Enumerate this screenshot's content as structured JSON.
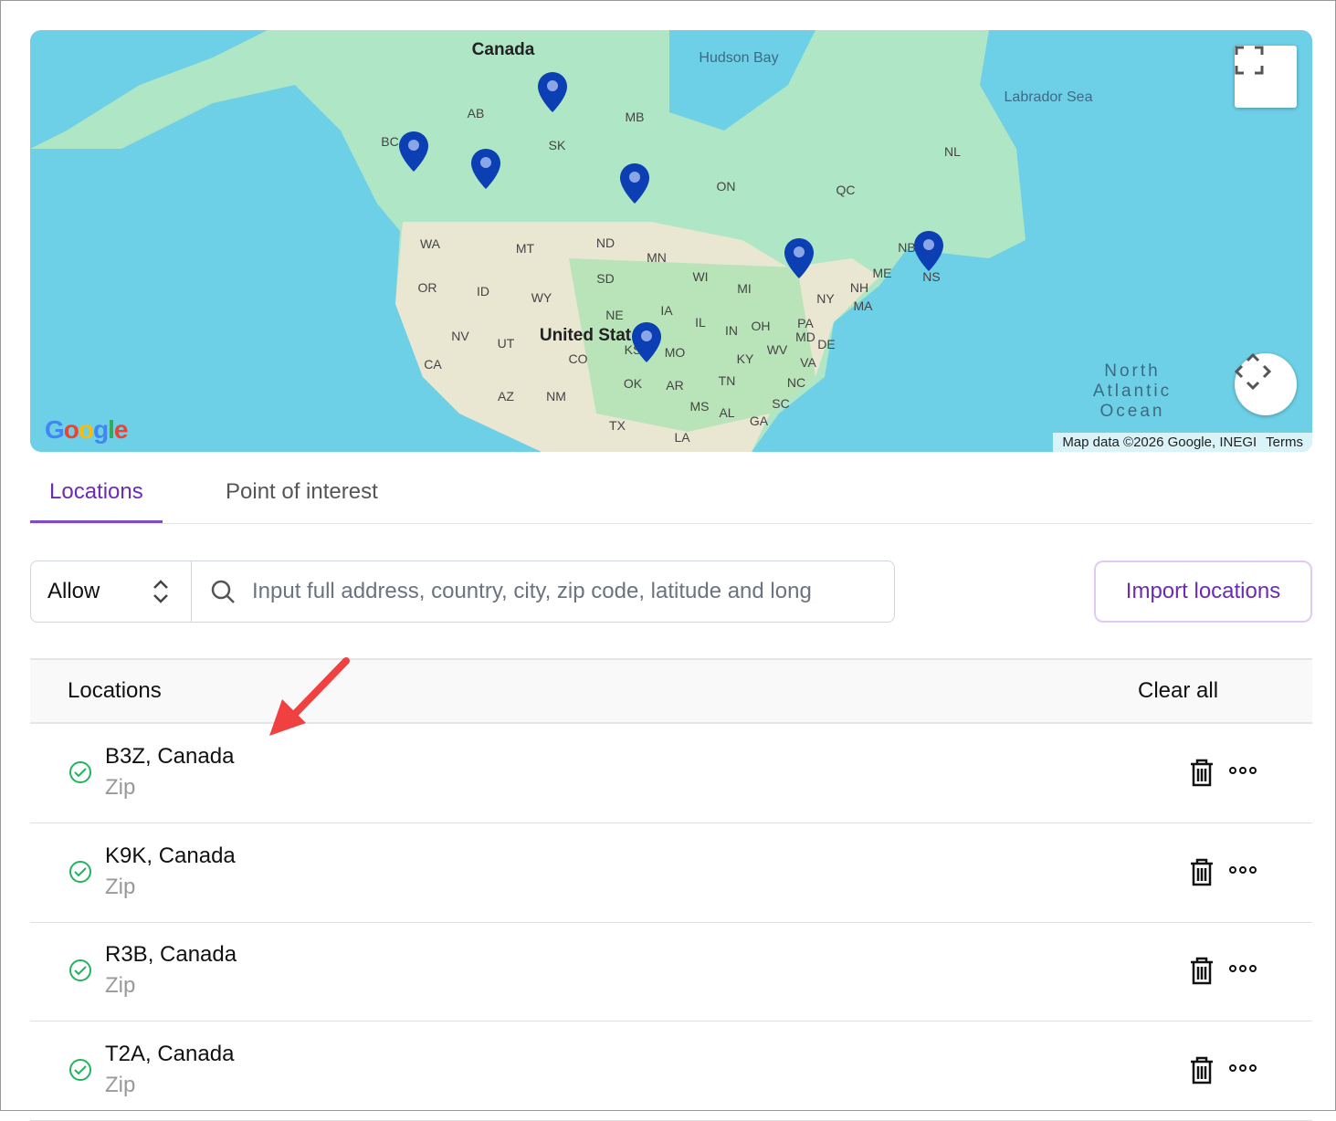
{
  "map": {
    "labels": {
      "country_canada": "Canada",
      "country_us": "United Stat",
      "hudson": "Hudson Bay",
      "labrador": "Labrador Sea",
      "ocean": "North\nAtlantic\nOcean",
      "regions": [
        "AB",
        "BC",
        "SK",
        "MB",
        "ON",
        "QC",
        "NL",
        "NB",
        "NS",
        "WA",
        "OR",
        "CA",
        "NV",
        "ID",
        "MT",
        "WY",
        "UT",
        "AZ",
        "NM",
        "ND",
        "SD",
        "NE",
        "CO",
        "KS",
        "OK",
        "TX",
        "MN",
        "IA",
        "MO",
        "AR",
        "LA",
        "WI",
        "IL",
        "MI",
        "IN",
        "OH",
        "KY",
        "TN",
        "MS",
        "AL",
        "GA",
        "SC",
        "NC",
        "VA",
        "WV",
        "PA",
        "NY",
        "MD",
        "DE",
        "NH",
        "MA",
        "ME"
      ]
    },
    "attribution": "Map data ©2026 Google, INEGI",
    "terms": "Terms",
    "logo": "Google",
    "marker_count": 7,
    "colors": {
      "marker": "#0b3fb3",
      "ocean": "#6dd0e6",
      "land": "#aee6c6"
    }
  },
  "tabs": [
    {
      "label": "Locations",
      "active": true
    },
    {
      "label": "Point of interest",
      "active": false
    }
  ],
  "filter": {
    "mode": "Allow",
    "search_placeholder": "Input full address, country, city, zip code, latitude and long"
  },
  "import_label": "Import locations",
  "table": {
    "header": "Locations",
    "clear_all": "Clear all",
    "rows": [
      {
        "name": "B3Z, Canada",
        "type": "Zip"
      },
      {
        "name": "K9K, Canada",
        "type": "Zip"
      },
      {
        "name": "R3B, Canada",
        "type": "Zip"
      },
      {
        "name": "T2A, Canada",
        "type": "Zip"
      }
    ]
  },
  "accent": "#6a2bb5"
}
